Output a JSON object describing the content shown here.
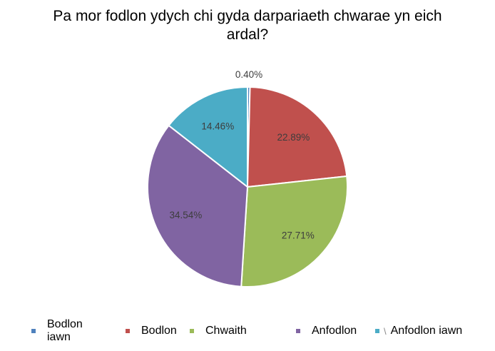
{
  "chart_data": {
    "type": "pie",
    "title": "Pa mor fodlon ydych chi gyda darpariaeth chwarae yn eich ardal?",
    "categories": [
      "Bodlon iawn",
      "Bodlon",
      "Chwaith",
      "Anfodlon",
      "Anfodlon iawn"
    ],
    "values": [
      0.4,
      22.89,
      27.71,
      34.54,
      14.46
    ],
    "data_labels": [
      "0.40%",
      "22.89%",
      "27.71%",
      "34.54%",
      "14.46%"
    ],
    "colors": [
      "#4F81BD",
      "#C0504D",
      "#9BBB59",
      "#8064A2",
      "#4BACC6"
    ],
    "legend_position": "bottom"
  }
}
